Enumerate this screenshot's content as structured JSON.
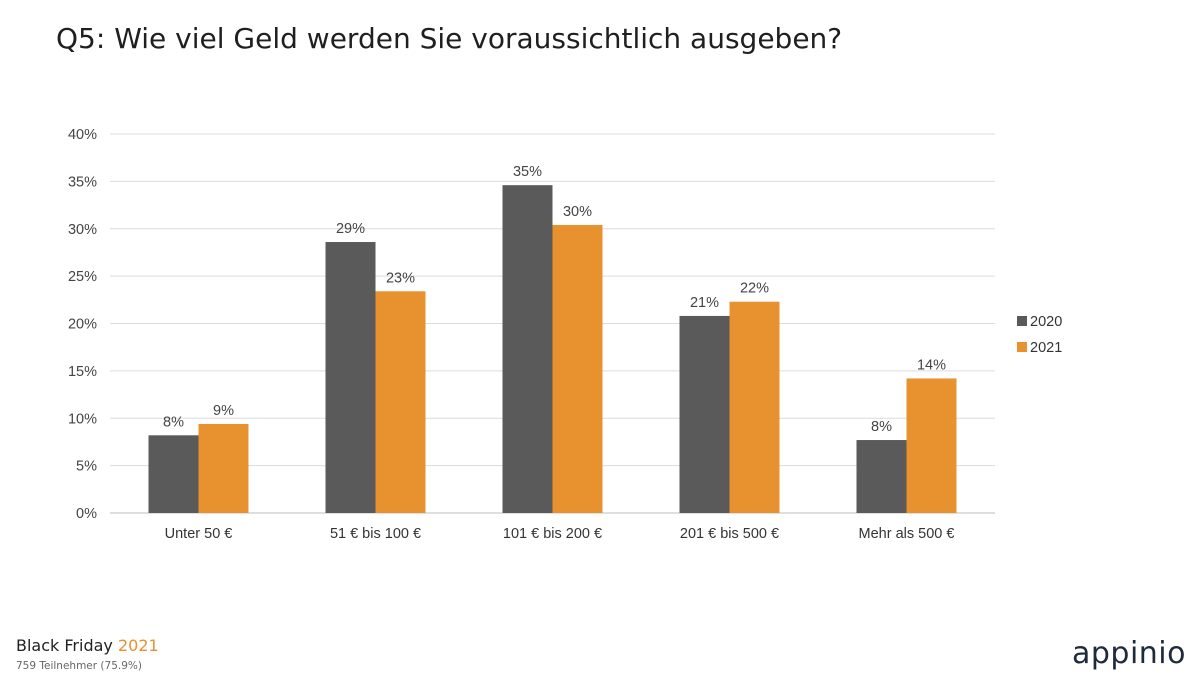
{
  "title": "Q5: Wie viel Geld werden Sie voraussichtlich ausgeben?",
  "chart_data": {
    "type": "bar",
    "categories": [
      "Unter 50 €",
      "51 € bis 100 €",
      "101 € bis 200 €",
      "201 € bis 500 €",
      "Mehr als 500 €"
    ],
    "series": [
      {
        "name": "2020",
        "color": "#5a5a5a",
        "values": [
          8.2,
          28.6,
          34.6,
          20.8,
          7.7
        ],
        "labels": [
          "8%",
          "29%",
          "35%",
          "21%",
          "8%"
        ]
      },
      {
        "name": "2021",
        "color": "#e8912f",
        "values": [
          9.4,
          23.4,
          30.4,
          22.3,
          14.2
        ],
        "labels": [
          "9%",
          "23%",
          "30%",
          "22%",
          "14%"
        ]
      }
    ],
    "ylim": [
      0,
      40
    ],
    "yticks": [
      "0%",
      "5%",
      "10%",
      "15%",
      "20%",
      "25%",
      "30%",
      "35%",
      "40%"
    ],
    "grid": true,
    "legend_position": "right"
  },
  "footer": {
    "title": "Black Friday",
    "year": "2021",
    "subtitle": "759 Teilnehmer (75.9%)"
  },
  "logo_text": "appinio"
}
